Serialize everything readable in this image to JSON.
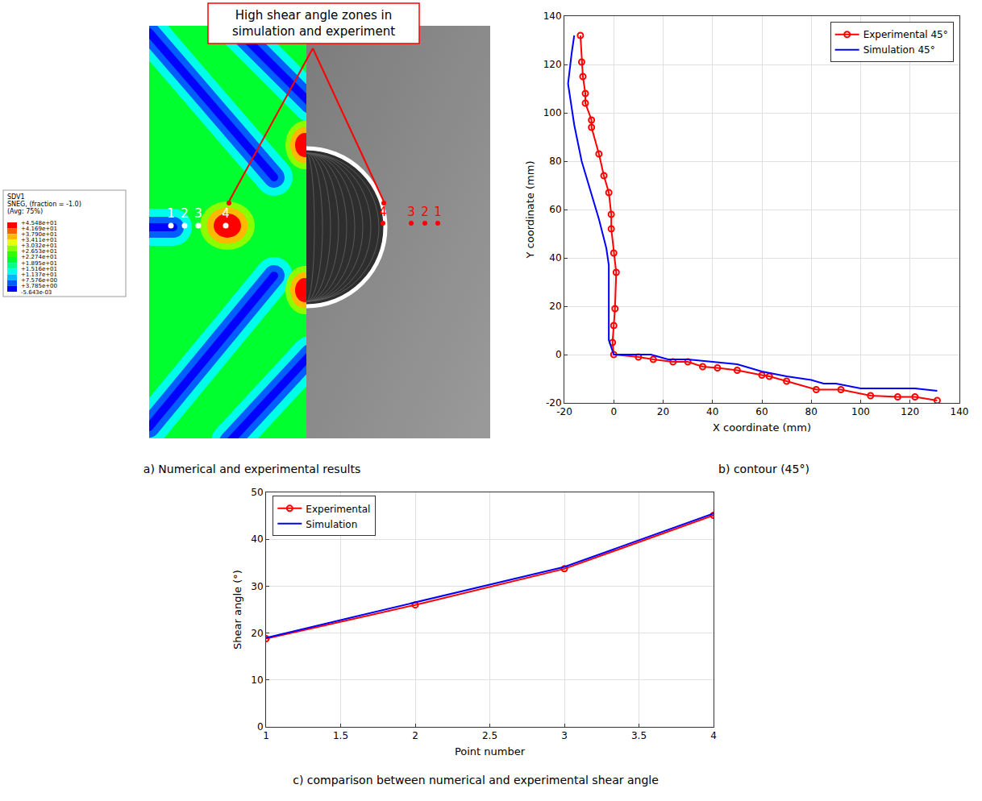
{
  "figure_a": {
    "caption": "a) Numerical and experimental results",
    "callout": [
      "High shear angle zones in",
      "simulation and experiment"
    ],
    "legend_header": [
      "SDV1",
      "SNEG, (fraction = -1.0)",
      "(Avg: 75%)"
    ],
    "legend_ticks": [
      {
        "value": 45.48,
        "label": "+4.548e+01"
      },
      {
        "value": 41.69,
        "label": "+4.169e+01"
      },
      {
        "value": 37.9,
        "label": "+3.790e+01"
      },
      {
        "value": 34.11,
        "label": "+3.411e+01"
      },
      {
        "value": 30.32,
        "label": "+3.032e+01"
      },
      {
        "value": 26.53,
        "label": "+2.653e+01"
      },
      {
        "value": 22.74,
        "label": "+2.274e+01"
      },
      {
        "value": 18.95,
        "label": "+1.895e+01"
      },
      {
        "value": 15.16,
        "label": "+1.516e+01"
      },
      {
        "value": 11.37,
        "label": "+1.137e+01"
      },
      {
        "value": 7.576,
        "label": "+7.576e+00"
      },
      {
        "value": 3.785,
        "label": "+3.785e+00"
      },
      {
        "value": -0.005643,
        "label": "-5.643e-03"
      }
    ],
    "colors": [
      "#ff0000",
      "#ff5d00",
      "#ffb900",
      "#e8ff00",
      "#8bff00",
      "#2eff00",
      "#00ff2e",
      "#00ff8b",
      "#00ffe8",
      "#00b9ff",
      "#005dff",
      "#0000ff"
    ],
    "simulation_points": [
      "1",
      "2",
      "3",
      "4"
    ],
    "experiment_points": [
      "4",
      "3",
      "2",
      "1"
    ]
  },
  "chart_data": [
    {
      "type": "line",
      "caption": "b) contour (45°)",
      "x_label": "X coordinate (mm)",
      "y_label": "Y coordinate (mm)",
      "xlim": [
        -20,
        140
      ],
      "xticks": [
        -20,
        0,
        20,
        40,
        60,
        80,
        100,
        120,
        140
      ],
      "ylim": [
        -20,
        140
      ],
      "yticks": [
        -20,
        0,
        20,
        40,
        60,
        80,
        100,
        120,
        140
      ],
      "grid": true,
      "legend": "upper right",
      "series": [
        {
          "name": "Experimental 45°",
          "color": "#ff0000",
          "marker": "circle",
          "line_style": "solid",
          "x": [
            -13.5,
            -13,
            -12.5,
            -11.5,
            -11.5,
            -9,
            -9,
            -6,
            -4,
            -2,
            -1,
            -1,
            0,
            1,
            0.5,
            0,
            -0.5,
            0,
            10,
            16,
            24,
            30,
            36,
            42,
            50,
            60,
            63,
            70,
            82,
            92,
            104,
            115,
            122,
            131
          ],
          "values": [
            132,
            121,
            115,
            108,
            104,
            97,
            94,
            83,
            74,
            67,
            58,
            52,
            42,
            34,
            19,
            12,
            5,
            0,
            -1,
            -2,
            -3,
            -3,
            -5,
            -5.5,
            -6.5,
            -8.5,
            -9,
            -11,
            -14.5,
            -14.5,
            -17,
            -17.5,
            -17.5,
            -19
          ]
        },
        {
          "name": "Simulation 45°",
          "color": "#0000ff",
          "marker": "none",
          "line_style": "solid",
          "x": [
            -16,
            -17,
            -18.5,
            -16,
            -13,
            -10,
            -6,
            -3,
            -2,
            -2,
            -2,
            -1,
            0,
            15,
            22,
            30,
            40,
            50,
            60,
            70,
            80,
            85,
            90,
            100,
            110,
            122,
            131
          ],
          "values": [
            132,
            125,
            112,
            95,
            80,
            70,
            56,
            44,
            37,
            30,
            6,
            3,
            0,
            0,
            -2,
            -2,
            -3,
            -4,
            -7,
            -9,
            -10.5,
            -12,
            -12,
            -14,
            -14,
            -14,
            -15
          ]
        }
      ]
    },
    {
      "type": "line",
      "caption": "c) comparison between numerical and experimental shear angle",
      "x_label": "Point number",
      "y_label": "Shear angle (°)",
      "x": [
        1,
        2,
        3,
        4
      ],
      "xlim": [
        1,
        4
      ],
      "xticks": [
        1,
        1.5,
        2,
        2.5,
        3,
        3.5,
        4
      ],
      "ylim": [
        0,
        50
      ],
      "yticks": [
        0,
        10,
        20,
        30,
        40,
        50
      ],
      "grid": true,
      "legend": "upper left",
      "series": [
        {
          "name": "Experimental",
          "color": "#ff0000",
          "marker": "circle",
          "line_style": "solid",
          "values": [
            18.8,
            26,
            33.7,
            45.1
          ]
        },
        {
          "name": "Simulation",
          "color": "#0000ff",
          "marker": "none",
          "line_style": "solid",
          "values": [
            19,
            26.5,
            34.1,
            45.5
          ]
        }
      ]
    }
  ]
}
